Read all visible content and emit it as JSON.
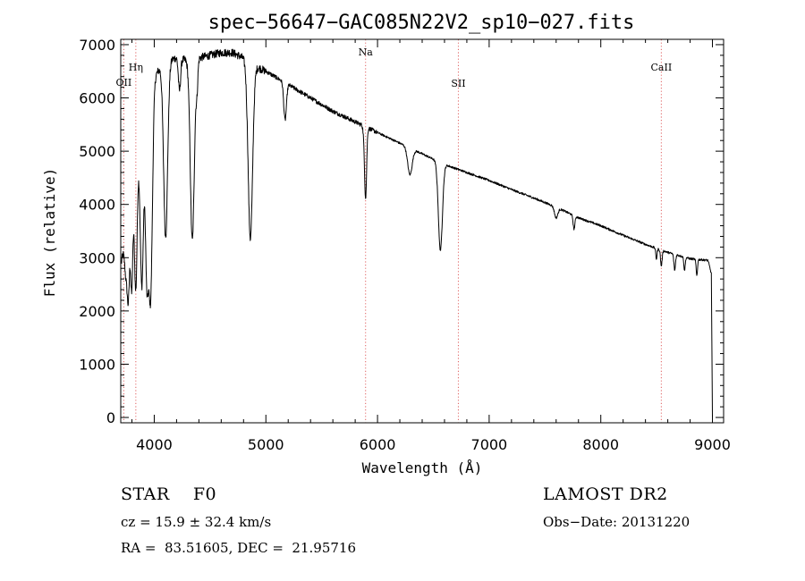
{
  "chart_data": {
    "type": "line",
    "title": "spec−56647−GAC085N22V2_sp10−027.fits",
    "xlabel": "Wavelength (Å)",
    "ylabel": "Flux (relative)",
    "xlim": [
      3700,
      9100
    ],
    "ylim": [
      -100,
      7100
    ],
    "xticks": [
      4000,
      5000,
      6000,
      7000,
      8000,
      9000
    ],
    "yticks": [
      0,
      1000,
      2000,
      3000,
      4000,
      5000,
      6000,
      7000
    ],
    "grid": false,
    "line_color": "#000000",
    "marker_color": "#e06060",
    "lines": [
      {
        "label": "OII",
        "wavelength": 3727
      },
      {
        "label": "Hη",
        "wavelength": 3835
      },
      {
        "label": "Na",
        "wavelength": 5893
      },
      {
        "label": "SII",
        "wavelength": 6724
      },
      {
        "label": "CaII",
        "wavelength": 8542
      }
    ],
    "continuum": [
      [
        3700,
        2800
      ],
      [
        3750,
        3700
      ],
      [
        3800,
        4200
      ],
      [
        3850,
        4900
      ],
      [
        3900,
        5500
      ],
      [
        3950,
        6000
      ],
      [
        4000,
        6400
      ],
      [
        4100,
        6700
      ],
      [
        4200,
        6750
      ],
      [
        4300,
        6700
      ],
      [
        4400,
        6750
      ],
      [
        4500,
        6800
      ],
      [
        4600,
        6850
      ],
      [
        4700,
        6850
      ],
      [
        4800,
        6750
      ],
      [
        4900,
        6600
      ],
      [
        5000,
        6500
      ],
      [
        5200,
        6250
      ],
      [
        5400,
        6000
      ],
      [
        5600,
        5750
      ],
      [
        5800,
        5550
      ],
      [
        6000,
        5350
      ],
      [
        6200,
        5150
      ],
      [
        6400,
        4950
      ],
      [
        6600,
        4750
      ],
      [
        6800,
        4600
      ],
      [
        7000,
        4450
      ],
      [
        7200,
        4280
      ],
      [
        7400,
        4120
      ],
      [
        7600,
        3950
      ],
      [
        7800,
        3750
      ],
      [
        8000,
        3600
      ],
      [
        8200,
        3420
      ],
      [
        8400,
        3250
      ],
      [
        8600,
        3100
      ],
      [
        8800,
        2980
      ],
      [
        8960,
        2950
      ],
      [
        8990,
        2700
      ],
      [
        9000,
        0
      ]
    ],
    "absorption": [
      [
        3750,
        1000,
        14
      ],
      [
        3770,
        1300,
        10
      ],
      [
        3798,
        1800,
        10
      ],
      [
        3835,
        2300,
        12
      ],
      [
        3889,
        2900,
        14
      ],
      [
        3934,
        3100,
        14
      ],
      [
        3968,
        3800,
        16
      ],
      [
        4102,
        3300,
        18
      ],
      [
        4226,
        600,
        10
      ],
      [
        4341,
        3400,
        18
      ],
      [
        4383,
        500,
        8
      ],
      [
        4861,
        3300,
        20
      ],
      [
        5172,
        700,
        12
      ],
      [
        5890,
        800,
        10
      ],
      [
        5896,
        600,
        8
      ],
      [
        6290,
        500,
        20
      ],
      [
        6563,
        1650,
        18
      ],
      [
        7600,
        200,
        15
      ],
      [
        7760,
        250,
        8
      ],
      [
        8498,
        200,
        6
      ],
      [
        8542,
        300,
        7
      ],
      [
        8662,
        300,
        7
      ],
      [
        8750,
        250,
        6
      ],
      [
        8860,
        300,
        6
      ]
    ]
  },
  "footer": {
    "object": "STAR    F0",
    "survey": "LAMOST DR2",
    "redshift": "cz = 15.9 ± 32.4 km/s",
    "obs_date": "Obs−Date: 20131220",
    "coords": "RA =  83.51605, DEC =  21.95716"
  }
}
